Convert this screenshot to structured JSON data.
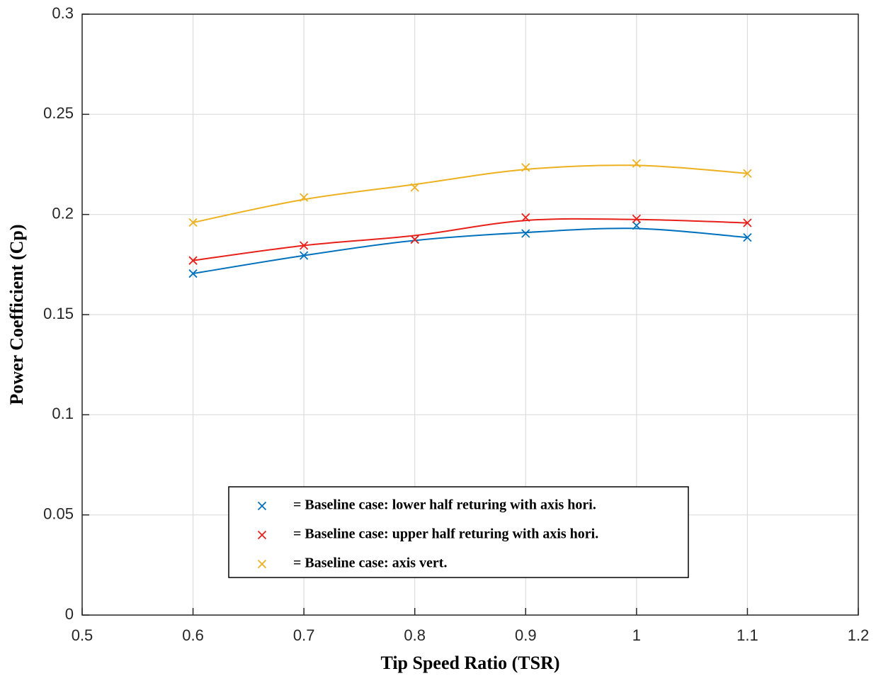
{
  "chart_data": {
    "type": "line",
    "x_label": "Tip Speed Ratio (TSR)",
    "y_label": "Power Coefficient (Cp)",
    "x": [
      0.6,
      0.7,
      0.8,
      0.9,
      1.0,
      1.1
    ],
    "series": [
      {
        "name": "= Baseline case: lower half returing with axis hori.",
        "color": "#0072bd",
        "values": [
          0.1705,
          0.1795,
          0.1875,
          0.1905,
          0.1945,
          0.1885
        ],
        "curve": [
          0.1705,
          0.1795,
          0.187,
          0.191,
          0.193,
          0.1885
        ]
      },
      {
        "name": "= Baseline case: upper half returing with axis hori.",
        "color": "#e8201a",
        "values": [
          0.177,
          0.1845,
          0.1875,
          0.1985,
          0.1978,
          0.1958
        ],
        "curve": [
          0.177,
          0.1845,
          0.1895,
          0.197,
          0.1975,
          0.1958
        ]
      },
      {
        "name": "= Baseline case: axis vert.",
        "color": "#edb120",
        "values": [
          0.196,
          0.2085,
          0.2135,
          0.2235,
          0.2255,
          0.2205
        ],
        "curve": [
          0.196,
          0.2075,
          0.215,
          0.2225,
          0.2245,
          0.2205
        ]
      }
    ],
    "xlim": [
      0.5,
      1.2
    ],
    "xticks": [
      0.5,
      0.6,
      0.7,
      0.8,
      0.9,
      1,
      1.1,
      1.2
    ],
    "ylim": [
      0,
      0.3
    ],
    "yticks": [
      0,
      0.05,
      0.1,
      0.15,
      0.2,
      0.25,
      0.3
    ],
    "grid": true
  }
}
